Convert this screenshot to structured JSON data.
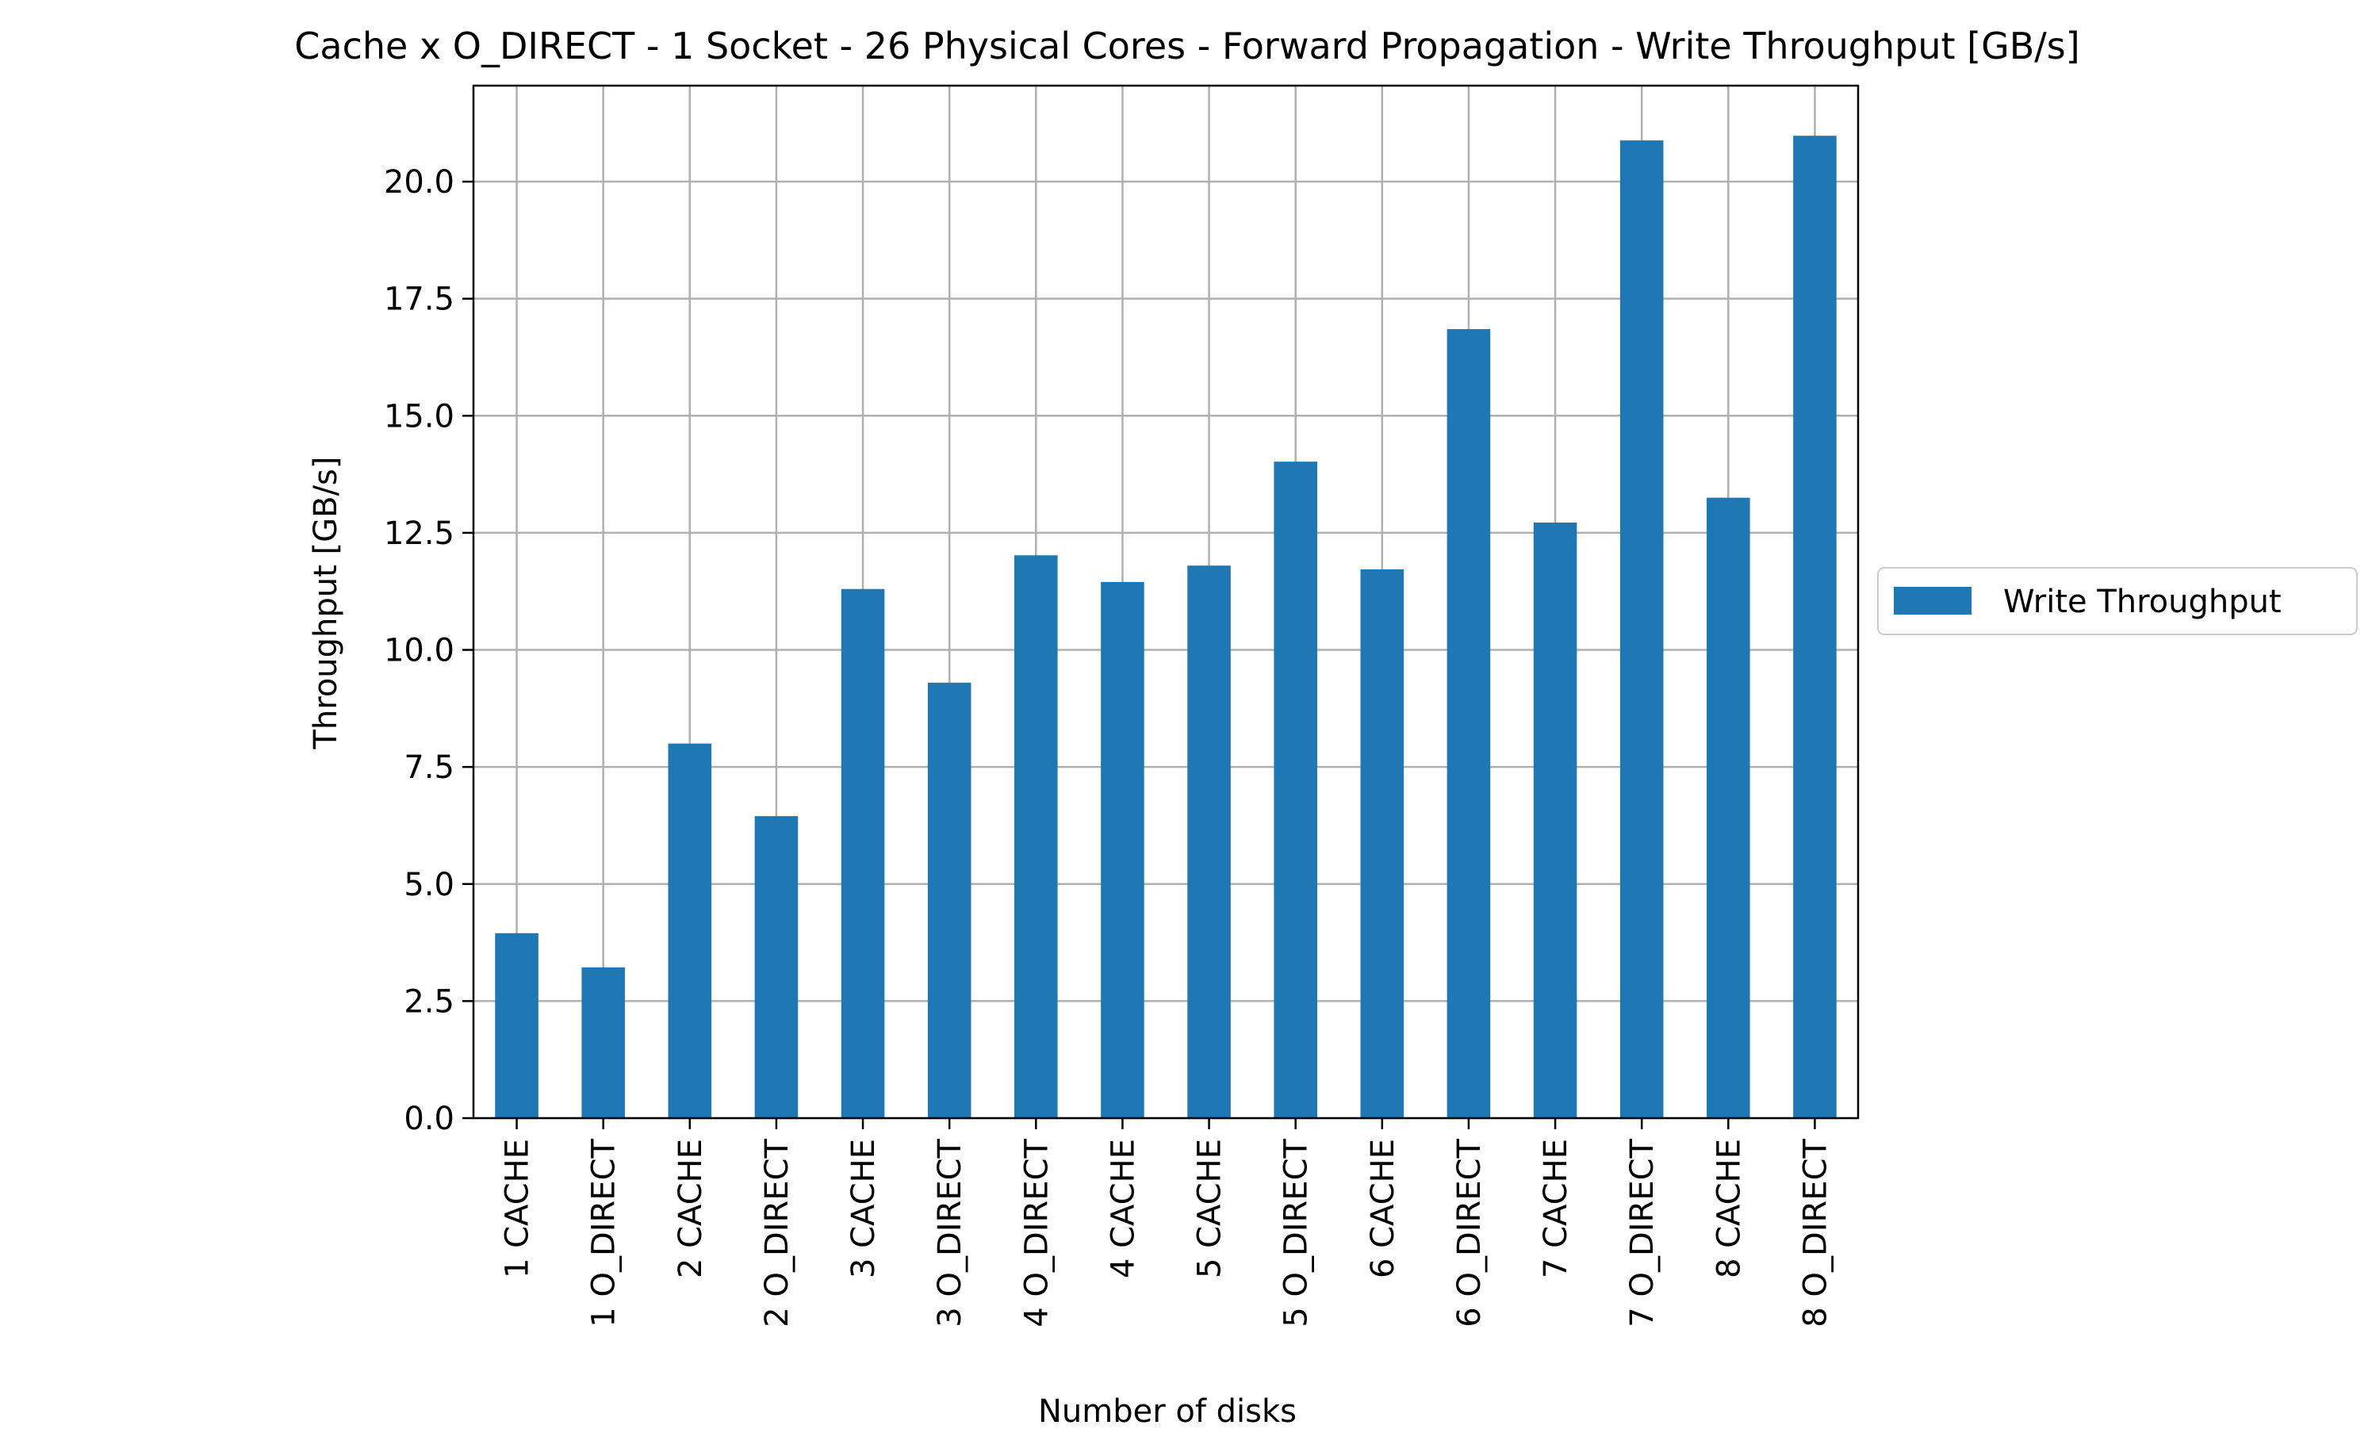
{
  "chart_data": {
    "type": "bar",
    "title": "Cache x O_DIRECT - 1 Socket - 26 Physical Cores - Forward Propagation - Write Throughput [GB/s]",
    "xlabel": "Number of disks",
    "ylabel": "Throughput [GB/s]",
    "ylim": [
      0,
      22.05
    ],
    "yticks": [
      0.0,
      2.5,
      5.0,
      7.5,
      10.0,
      12.5,
      15.0,
      17.5,
      20.0
    ],
    "ytick_labels": [
      "0.0",
      "2.5",
      "5.0",
      "7.5",
      "10.0",
      "12.5",
      "15.0",
      "17.5",
      "20.0"
    ],
    "grid": true,
    "legend_position": "center-right-outside",
    "categories": [
      "1 CACHE",
      "1 O_DIRECT",
      "2 CACHE",
      "2 O_DIRECT",
      "3 CACHE",
      "3 O_DIRECT",
      "4 O_DIRECT",
      "4 CACHE",
      "5 CACHE",
      "5 O_DIRECT",
      "6 CACHE",
      "6 O_DIRECT",
      "7 CACHE",
      "7 O_DIRECT",
      "8 CACHE",
      "8 O_DIRECT"
    ],
    "series": [
      {
        "name": "Write Throughput",
        "color": "#1f77b4",
        "values": [
          3.95,
          3.22,
          8.0,
          6.45,
          11.3,
          9.3,
          12.02,
          11.45,
          11.8,
          14.02,
          11.72,
          16.85,
          12.72,
          20.88,
          13.25,
          20.98
        ]
      }
    ]
  }
}
